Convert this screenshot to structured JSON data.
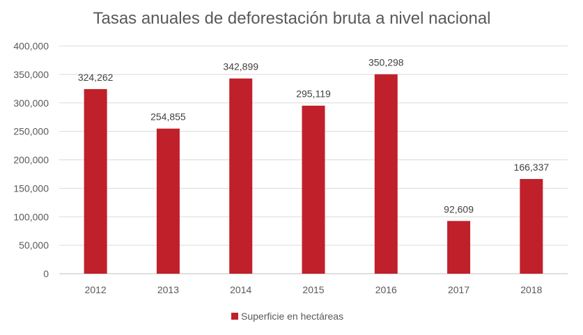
{
  "chart_data": {
    "type": "bar",
    "title": "Tasas anuales de deforestación bruta a nivel nacional",
    "categories": [
      "2012",
      "2013",
      "2014",
      "2015",
      "2016",
      "2017",
      "2018"
    ],
    "series": [
      {
        "name": "Superficie en hectáreas",
        "values": [
          324262,
          254855,
          342899,
          295119,
          350298,
          92609,
          166337
        ],
        "labels": [
          "324,262",
          "254,855",
          "342,899",
          "295,119",
          "350,298",
          "92,609",
          "166,337"
        ],
        "color": "#c0202a"
      }
    ],
    "yticks": [
      0,
      50000,
      100000,
      150000,
      200000,
      250000,
      300000,
      350000,
      400000
    ],
    "ytick_labels": [
      "0",
      "50,000",
      "100,000",
      "150,000",
      "200,000",
      "250,000",
      "300,000",
      "350,000",
      "400,000"
    ],
    "ylim": [
      0,
      400000
    ],
    "xlabel": "",
    "ylabel": "",
    "grid": true,
    "legend": "bottom-center"
  }
}
